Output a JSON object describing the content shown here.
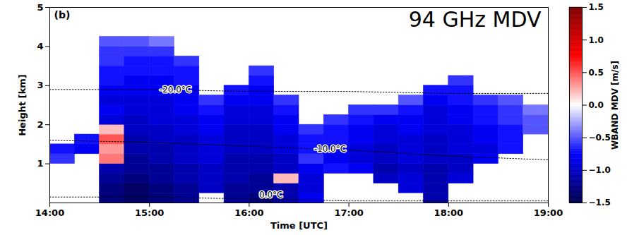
{
  "chart_data": {
    "type": "heatmap",
    "panel_label": "(b)",
    "annotation": "94 GHz MDV",
    "x_label": "Time [UTC]",
    "y_label": "Height [km]",
    "xlim": [
      14,
      19
    ],
    "xticks": [
      {
        "value": 14,
        "label": "14:00"
      },
      {
        "value": 15,
        "label": "15:00"
      },
      {
        "value": 16,
        "label": "16:00"
      },
      {
        "value": 17,
        "label": "17:00"
      },
      {
        "value": 18,
        "label": "18:00"
      },
      {
        "value": 19,
        "label": "19:00"
      }
    ],
    "ylim": [
      0,
      5
    ],
    "yticks": [
      1,
      2,
      3,
      4,
      5
    ],
    "time_edges": [
      14,
      14.25,
      14.5,
      14.75,
      15,
      15.25,
      15.5,
      15.75,
      16,
      16.25,
      16.5,
      16.75,
      17,
      17.25,
      17.5,
      17.75,
      18,
      18.25,
      18.5,
      18.75,
      19
    ],
    "height_edges": [
      0,
      0.25,
      0.5,
      0.75,
      1,
      1.25,
      1.5,
      1.75,
      2,
      2.25,
      2.5,
      2.75,
      3,
      3.25,
      3.5,
      3.75,
      4,
      4.25,
      4.5,
      4.75,
      5
    ],
    "mdv": [
      [
        null,
        null,
        null,
        null,
        -0.6,
        -0.7,
        null,
        null,
        null,
        null,
        null,
        null,
        null,
        null,
        null,
        null,
        null,
        null,
        null,
        null
      ],
      [
        null,
        null,
        null,
        null,
        null,
        -0.8,
        -0.7,
        null,
        null,
        null,
        null,
        null,
        null,
        null,
        null,
        null,
        null,
        null,
        null,
        null
      ],
      [
        -1.3,
        -1.3,
        -1.2,
        -1.1,
        0.4,
        0.3,
        0.5,
        0.2,
        -0.9,
        -0.8,
        -0.9,
        -0.8,
        -0.7,
        -0.7,
        -0.6,
        -0.6,
        -0.5,
        null,
        null,
        null
      ],
      [
        -1.4,
        -1.4,
        -1.3,
        -1.2,
        -1.2,
        -1.1,
        -1.1,
        -1.0,
        -1.0,
        -0.9,
        -0.9,
        -0.8,
        -0.8,
        -0.7,
        -0.7,
        -0.6,
        -0.5,
        null,
        null,
        null
      ],
      [
        -1.3,
        -1.3,
        -1.2,
        -1.2,
        -1.1,
        -1.1,
        -1.0,
        -1.0,
        -0.9,
        -0.9,
        -0.9,
        -0.8,
        -0.8,
        -0.7,
        -0.7,
        -0.6,
        -0.4,
        null,
        null,
        null
      ],
      [
        -1.2,
        -1.2,
        -1.1,
        -1.1,
        -1.0,
        -1.0,
        -1.0,
        -0.9,
        -0.9,
        -0.8,
        -0.8,
        -0.8,
        -0.7,
        -0.7,
        -0.6,
        null,
        null,
        null,
        null,
        null
      ],
      [
        null,
        -1.0,
        -1.0,
        -1.0,
        -0.9,
        -0.9,
        -0.9,
        -0.8,
        -0.8,
        -0.7,
        -0.6,
        null,
        null,
        null,
        null,
        null,
        null,
        null,
        null,
        null
      ],
      [
        -1.2,
        -1.2,
        -1.1,
        -1.1,
        -1.1,
        -1.0,
        -1.0,
        -1.0,
        -0.9,
        -0.9,
        -0.8,
        -0.7,
        null,
        null,
        null,
        null,
        null,
        null,
        null,
        null
      ],
      [
        -1.3,
        -1.2,
        -1.2,
        -1.1,
        -1.1,
        -1.0,
        -1.0,
        -1.0,
        -0.9,
        -0.9,
        -0.8,
        -0.8,
        -0.7,
        -0.6,
        null,
        null,
        null,
        null,
        null,
        null
      ],
      [
        -1.1,
        -1.1,
        0.2,
        -1.0,
        -1.0,
        -0.9,
        -0.9,
        -0.8,
        -0.8,
        -0.7,
        -0.6,
        null,
        null,
        null,
        null,
        null,
        null,
        null,
        null,
        null
      ],
      [
        -0.8,
        -0.9,
        -0.9,
        -0.8,
        -0.6,
        -0.7,
        -0.7,
        -0.6,
        null,
        null,
        null,
        null,
        null,
        null,
        null,
        null,
        null,
        null,
        null,
        null
      ],
      [
        null,
        null,
        null,
        -0.7,
        -0.8,
        -0.8,
        -0.7,
        -0.7,
        -0.6,
        null,
        null,
        null,
        null,
        null,
        null,
        null,
        null,
        null,
        null,
        null
      ],
      [
        null,
        null,
        null,
        -0.8,
        -0.9,
        -0.9,
        -0.8,
        -0.8,
        -0.7,
        -0.6,
        null,
        null,
        null,
        null,
        null,
        null,
        null,
        null,
        null,
        null
      ],
      [
        null,
        null,
        -1.0,
        -1.1,
        -1.0,
        -1.0,
        -0.9,
        -0.9,
        -0.8,
        -0.6,
        null,
        null,
        null,
        null,
        null,
        null,
        null,
        null,
        null,
        null
      ],
      [
        null,
        -0.9,
        -0.9,
        -1.0,
        -0.9,
        -0.9,
        -0.9,
        -0.8,
        -0.8,
        -0.7,
        -0.5,
        null,
        null,
        null,
        null,
        null,
        null,
        null,
        null,
        null
      ],
      [
        -1.1,
        -1.1,
        -1.1,
        -1.1,
        -1.0,
        -1.0,
        -1.0,
        -0.9,
        -0.9,
        -0.9,
        -0.8,
        -0.7,
        null,
        null,
        null,
        null,
        null,
        null,
        null,
        null
      ],
      [
        null,
        null,
        -0.9,
        -1.0,
        -1.0,
        -0.9,
        -0.9,
        -0.9,
        -0.8,
        -0.8,
        -0.7,
        -0.7,
        -0.6,
        null,
        null,
        null,
        null,
        null,
        null,
        null
      ],
      [
        null,
        null,
        null,
        null,
        -0.8,
        -0.9,
        -0.8,
        -0.8,
        -0.7,
        -0.7,
        -0.6,
        null,
        null,
        null,
        null,
        null,
        null,
        null,
        null,
        null
      ],
      [
        null,
        null,
        null,
        null,
        null,
        -0.7,
        -0.7,
        -0.7,
        -0.6,
        -0.6,
        -0.5,
        null,
        null,
        null,
        null,
        null,
        null,
        null,
        null,
        null
      ],
      [
        null,
        null,
        null,
        null,
        null,
        null,
        null,
        -0.5,
        -0.5,
        -0.4,
        null,
        null,
        null,
        null,
        null,
        null,
        null,
        null,
        null,
        null
      ]
    ],
    "colorbar": {
      "label": "WBAND MDV [m/s]",
      "range": [
        -1.5,
        1.5
      ],
      "ticks": [
        {
          "value": -1.5,
          "label": "−1.5"
        },
        {
          "value": -1.0,
          "label": "−1.0"
        },
        {
          "value": -0.5,
          "label": "−0.5"
        },
        {
          "value": 0,
          "label": "0.0"
        },
        0.5,
        {
          "value": 1.0,
          "label": "1.0"
        },
        1.5
      ]
    },
    "series": [
      {
        "name": "-20.0°C",
        "color": "#000000",
        "line_style": "dotted",
        "x": [
          14,
          15,
          16,
          17,
          18,
          19
        ],
        "values": [
          2.9,
          2.9,
          2.85,
          2.85,
          2.8,
          2.8
        ]
      },
      {
        "name": "-10.0°C",
        "color": "#000000",
        "line_style": "dotted",
        "x": [
          14,
          15,
          16,
          17,
          18,
          19
        ],
        "values": [
          1.6,
          1.55,
          1.45,
          1.35,
          1.2,
          1.1
        ]
      },
      {
        "name": "0.0°C",
        "color": "#000000",
        "line_style": "dotted",
        "x": [
          14,
          15,
          16,
          17,
          18,
          19
        ],
        "values": [
          0.15,
          0.15,
          0.1,
          0.05,
          0.05,
          0.05
        ]
      }
    ]
  }
}
